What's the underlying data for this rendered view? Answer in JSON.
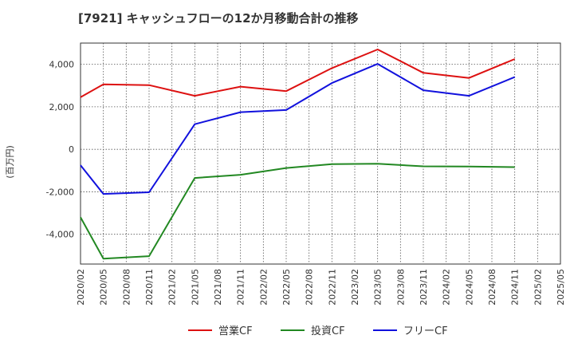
{
  "chart_data": {
    "type": "line",
    "title": "[7921]  キャッシュフローの12か月移動合計の推移",
    "ylabel": "(百万円)",
    "xlabel": "",
    "ylim": [
      -5400,
      5000
    ],
    "yticks": [
      -4000,
      -2000,
      0,
      2000,
      4000
    ],
    "ytick_labels": [
      "-4,000",
      "-2,000",
      "0",
      "2,000",
      "4,000"
    ],
    "x_tick_labels": [
      "2020/02",
      "2020/05",
      "2020/08",
      "2020/11",
      "2021/02",
      "2021/05",
      "2021/08",
      "2021/11",
      "2022/02",
      "2022/05",
      "2022/08",
      "2022/11",
      "2023/02",
      "2023/05",
      "2023/08",
      "2023/11",
      "2024/02",
      "2024/05",
      "2024/08",
      "2024/11",
      "2025/02",
      "2025/05"
    ],
    "grid": true,
    "legend_position": "bottom",
    "series": [
      {
        "name": "営業CF",
        "color": "#dd1111",
        "points": [
          [
            "2020/02",
            2450
          ],
          [
            "2020/05",
            3060
          ],
          [
            "2020/11",
            3020
          ],
          [
            "2021/05",
            2520
          ],
          [
            "2021/11",
            2950
          ],
          [
            "2022/05",
            2740
          ],
          [
            "2022/11",
            3820
          ],
          [
            "2023/05",
            4700
          ],
          [
            "2023/11",
            3600
          ],
          [
            "2024/05",
            3360
          ],
          [
            "2024/11",
            4250
          ]
        ]
      },
      {
        "name": "投資CF",
        "color": "#228822",
        "points": [
          [
            "2020/02",
            -3200
          ],
          [
            "2020/05",
            -5150
          ],
          [
            "2020/11",
            -5030
          ],
          [
            "2021/05",
            -1350
          ],
          [
            "2021/11",
            -1200
          ],
          [
            "2022/05",
            -880
          ],
          [
            "2022/11",
            -700
          ],
          [
            "2023/05",
            -680
          ],
          [
            "2023/11",
            -800
          ],
          [
            "2024/05",
            -810
          ],
          [
            "2024/11",
            -840
          ]
        ]
      },
      {
        "name": "フリーCF",
        "color": "#1111dd",
        "points": [
          [
            "2020/02",
            -750
          ],
          [
            "2020/05",
            -2100
          ],
          [
            "2020/11",
            -2020
          ],
          [
            "2021/05",
            1180
          ],
          [
            "2021/11",
            1750
          ],
          [
            "2022/05",
            1850
          ],
          [
            "2022/11",
            3120
          ],
          [
            "2023/05",
            4020
          ],
          [
            "2023/11",
            2780
          ],
          [
            "2024/05",
            2520
          ],
          [
            "2024/11",
            3400
          ]
        ]
      }
    ]
  }
}
